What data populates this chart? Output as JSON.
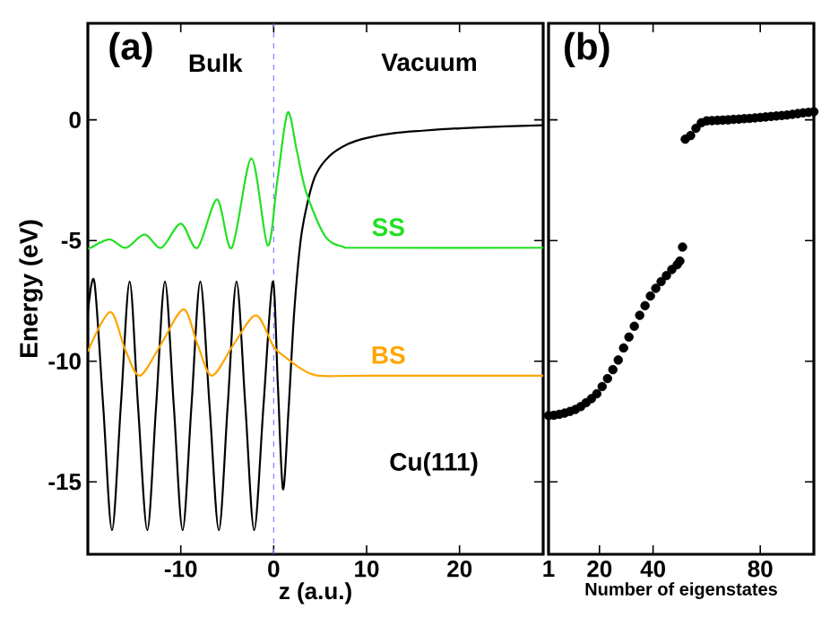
{
  "chart_data": [
    {
      "type": "line",
      "title": "(a)",
      "xlabel": "z (a.u.)",
      "ylabel": "Energy (eV)",
      "xlim": [
        -20,
        29
      ],
      "ylim": [
        -18,
        4
      ],
      "xticks": [
        -10,
        0,
        10,
        20
      ],
      "yticks": [
        -15,
        -10,
        -5,
        0
      ],
      "annotations": [
        "Bulk",
        "Vacuum",
        "Cu(111)"
      ],
      "ref_lines": [
        {
          "axis": "x",
          "value": 0,
          "color": "#8080ff",
          "line_style": "dashed"
        }
      ],
      "series": [
        {
          "color": "#000000",
          "x": [
            -20,
            -19.3,
            -18.35,
            -17.4,
            -16.45,
            -15.5,
            -14.6,
            -13.6,
            -12.65,
            -11.7,
            -10.75,
            -9.8,
            -8.85,
            -7.9,
            -6.9,
            -5.9,
            -4.95,
            -4.0,
            -3.05,
            -2.1,
            -1.1,
            -0.1,
            0.45,
            1.0,
            1.6,
            2.2,
            2.9,
            3.6,
            4.5,
            6,
            8,
            10,
            13,
            16,
            20,
            25,
            29
          ],
          "values": [
            -8.0,
            -6.7,
            -11.85,
            -17.0,
            -11.85,
            -6.7,
            -11.85,
            -17.0,
            -11.85,
            -6.7,
            -11.85,
            -17.0,
            -11.85,
            -6.7,
            -11.85,
            -17.0,
            -11.85,
            -6.7,
            -11.85,
            -17.0,
            -11.85,
            -6.7,
            -11.0,
            -15.3,
            -12.0,
            -8.0,
            -5.0,
            -3.5,
            -2.3,
            -1.5,
            -1.0,
            -0.75,
            -0.55,
            -0.45,
            -0.35,
            -0.27,
            -0.22
          ]
        },
        {
          "name": "SS",
          "color": "#22e022",
          "x": [
            -20,
            -19.7,
            -17.7,
            -15.9,
            -13.9,
            -12.1,
            -10.0,
            -8.2,
            -6.1,
            -4.5,
            -2.4,
            -0.65,
            0.4,
            1.5,
            2.5,
            3.5,
            5.5,
            7.4,
            10,
            29
          ],
          "values": [
            -5.3,
            -5.3,
            -4.95,
            -5.3,
            -4.75,
            -5.3,
            -4.3,
            -5.3,
            -3.3,
            -5.3,
            -1.6,
            -5.2,
            -2.5,
            0.3,
            -1.3,
            -3.0,
            -4.8,
            -5.25,
            -5.3,
            -5.3
          ]
        },
        {
          "name": "BS",
          "color": "#ffa500",
          "x": [
            -20,
            -17.6,
            -16.0,
            -14.4,
            -12.05,
            -9.7,
            -8.2,
            -6.65,
            -4.3,
            -1.9,
            0,
            1.5,
            2.9,
            4.8,
            10,
            29
          ],
          "values": [
            -9.6,
            -7.96,
            -9.5,
            -10.6,
            -9.25,
            -7.85,
            -9.3,
            -10.6,
            -9.3,
            -8.1,
            -9.4,
            -9.9,
            -10.3,
            -10.6,
            -10.6,
            -10.6
          ]
        }
      ]
    },
    {
      "type": "scatter",
      "title": "(b)",
      "xlabel": "Number of eigenstates",
      "xlim": [
        1,
        100
      ],
      "ylim": [
        -18,
        4
      ],
      "xticks": [
        1,
        20,
        40,
        80
      ],
      "yticks": [
        -15,
        -10,
        -5,
        0
      ],
      "tick_labels": "x",
      "series": [
        {
          "color": "#000000",
          "x": [
            1,
            3,
            5,
            7,
            9,
            11,
            13,
            15,
            17,
            19,
            21,
            23,
            25,
            27,
            29,
            31,
            33,
            35,
            37,
            39,
            41,
            43,
            45,
            47,
            49,
            50,
            51,
            52,
            54,
            56,
            58,
            60,
            62,
            64,
            66,
            68,
            70,
            72,
            74,
            76,
            78,
            80,
            82,
            84,
            86,
            88,
            90,
            92,
            94,
            96,
            98,
            100
          ],
          "values": [
            -12.25,
            -12.24,
            -12.2,
            -12.15,
            -12.08,
            -12.0,
            -11.88,
            -11.72,
            -11.55,
            -11.35,
            -11.05,
            -10.72,
            -10.35,
            -9.95,
            -9.45,
            -9.0,
            -8.55,
            -8.1,
            -7.7,
            -7.3,
            -6.98,
            -6.7,
            -6.45,
            -6.2,
            -6.0,
            -5.85,
            -5.27,
            -0.8,
            -0.65,
            -0.35,
            -0.12,
            -0.04,
            -0.03,
            -0.02,
            -0.01,
            0.0,
            0.02,
            0.03,
            0.05,
            0.06,
            0.08,
            0.1,
            0.12,
            0.14,
            0.16,
            0.18,
            0.2,
            0.23,
            0.26,
            0.29,
            0.31,
            0.34
          ]
        }
      ]
    }
  ]
}
